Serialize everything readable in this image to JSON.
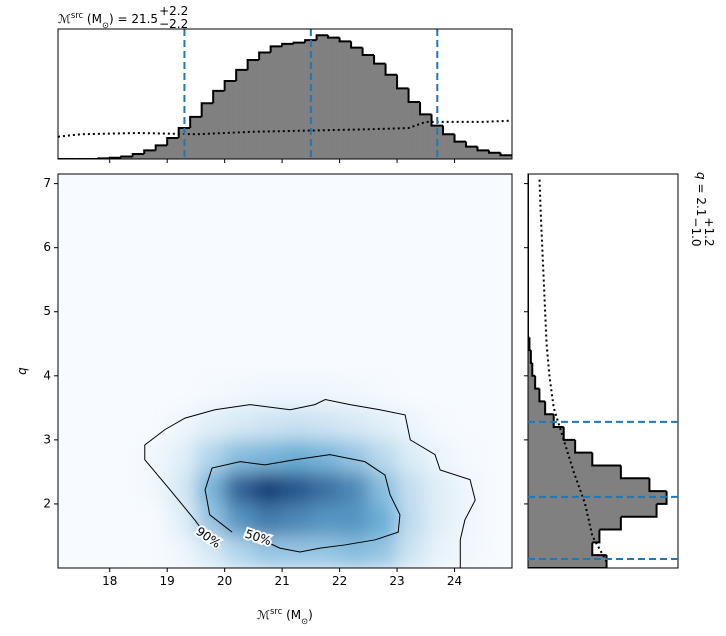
{
  "chart_data": {
    "type": "joint",
    "title": {
      "main": "ℳ",
      "sup": "src",
      "rest": " (M",
      "sub": "⊙",
      "close": ") = 21.5",
      "upper": "+2.2",
      "lower": "−2.2"
    },
    "right_title": {
      "main": "q",
      "rest": " = 2.1",
      "upper": "+1.2",
      "lower": "−1.0"
    },
    "xlabel": {
      "main": "ℳ",
      "sup": "src",
      "rest": " (M",
      "sub": "⊙",
      "close": ")"
    },
    "ylabel": "q",
    "xlim": [
      17.1,
      25.0
    ],
    "xticks": [
      18,
      19,
      20,
      21,
      22,
      23,
      24
    ],
    "ylim": [
      1.0,
      7.15
    ],
    "yticks": [
      2,
      3,
      4,
      5,
      6,
      7
    ],
    "cmap": [
      "#f7fbff",
      "#6baed6",
      "#08306b"
    ],
    "heatmap": {
      "x": [
        18.75,
        19.25,
        19.75,
        20.25,
        20.75,
        21.25,
        21.75,
        22.25,
        22.75,
        23.25,
        23.75,
        24.25
      ],
      "y": [
        1.25,
        1.75,
        2.25,
        2.75,
        3.25,
        3.75
      ],
      "values": [
        [
          0,
          0.03,
          0.12,
          0.25,
          0.35,
          0.35,
          0.35,
          0.4,
          0.35,
          0.15,
          0.05,
          0.02
        ],
        [
          0,
          0.08,
          0.35,
          0.6,
          0.7,
          0.65,
          0.6,
          0.6,
          0.5,
          0.2,
          0.08,
          0.03
        ],
        [
          0.02,
          0.12,
          0.45,
          0.8,
          0.95,
          0.85,
          0.75,
          0.65,
          0.4,
          0.18,
          0.08,
          0.03
        ],
        [
          0.02,
          0.08,
          0.25,
          0.4,
          0.45,
          0.5,
          0.45,
          0.35,
          0.22,
          0.1,
          0.04,
          0.01
        ],
        [
          0,
          0.03,
          0.08,
          0.12,
          0.15,
          0.17,
          0.15,
          0.12,
          0.08,
          0.04,
          0.01,
          0
        ],
        [
          0,
          0,
          0.01,
          0.02,
          0.03,
          0.03,
          0.03,
          0.02,
          0.01,
          0,
          0,
          0
        ]
      ]
    },
    "contours": [
      {
        "label": "90%",
        "x": [
          19.71,
          19.48,
          19.05,
          18.61,
          18.61,
          18.96,
          19.31,
          19.83,
          20.44,
          21.14,
          21.57,
          21.75,
          22.18,
          22.7,
          23.14,
          23.23,
          23.66,
          23.75,
          24.27,
          24.36,
          24.18,
          24.1,
          24.1
        ],
        "y": [
          1.47,
          1.75,
          2.22,
          2.69,
          2.92,
          3.16,
          3.34,
          3.47,
          3.55,
          3.47,
          3.55,
          3.63,
          3.55,
          3.47,
          3.39,
          3.0,
          2.77,
          2.53,
          2.38,
          2.06,
          1.75,
          1.44,
          1.0
        ]
      },
      {
        "label": "50%",
        "x": [
          20.58,
          20.96,
          21.31,
          21.66,
          22.09,
          22.62,
          23.02,
          23.05,
          22.88,
          22.79,
          22.44,
          21.83,
          21.22,
          20.7,
          20.27,
          19.78,
          19.66,
          19.74,
          20.13
        ],
        "y": [
          1.47,
          1.31,
          1.25,
          1.31,
          1.36,
          1.44,
          1.56,
          1.83,
          2.14,
          2.45,
          2.66,
          2.77,
          2.69,
          2.61,
          2.66,
          2.56,
          2.22,
          1.83,
          1.56
        ]
      }
    ],
    "top_hist": {
      "color": "#808080",
      "ylim": [
        0,
        1.05
      ],
      "bins": [
        17.0,
        17.2,
        17.4,
        17.6,
        17.8,
        18.0,
        18.2,
        18.4,
        18.6,
        18.8,
        19.0,
        19.2,
        19.4,
        19.6,
        19.8,
        20.0,
        20.2,
        20.4,
        20.6,
        20.8,
        21.0,
        21.2,
        21.4,
        21.6,
        21.8,
        22.0,
        22.2,
        22.4,
        22.6,
        22.8,
        23.0,
        23.2,
        23.4,
        23.6,
        23.8,
        24.0,
        24.2,
        24.4,
        24.6,
        24.8,
        25.0
      ],
      "counts": [
        0,
        0,
        0,
        0,
        0.005,
        0.01,
        0.02,
        0.04,
        0.07,
        0.11,
        0.17,
        0.25,
        0.34,
        0.45,
        0.55,
        0.63,
        0.72,
        0.8,
        0.86,
        0.91,
        0.93,
        0.94,
        0.96,
        1.0,
        0.98,
        0.95,
        0.9,
        0.84,
        0.77,
        0.68,
        0.57,
        0.46,
        0.36,
        0.27,
        0.2,
        0.14,
        0.1,
        0.07,
        0.05,
        0.03
      ],
      "prior": {
        "x": [
          17.1,
          17.5,
          18.5,
          19.5,
          20.5,
          21.5,
          22.5,
          23.2,
          23.5,
          24.5,
          25.0
        ],
        "y": [
          0.18,
          0.2,
          0.21,
          0.2,
          0.22,
          0.23,
          0.24,
          0.25,
          0.3,
          0.3,
          0.31
        ]
      },
      "quantiles": [
        19.3,
        21.5,
        23.7
      ],
      "quantile_color": "#1f77b4"
    },
    "right_hist": {
      "color": "#808080",
      "xlim": [
        0,
        1.05
      ],
      "bins": [
        1.0,
        1.2,
        1.4,
        1.6,
        1.8,
        2.0,
        2.2,
        2.4,
        2.6,
        2.8,
        3.0,
        3.2,
        3.4,
        3.6,
        3.8,
        4.0,
        4.2,
        4.4,
        4.6,
        4.8,
        5.0,
        5.2,
        5.4,
        5.6,
        5.8,
        6.0,
        6.2,
        6.4,
        6.6,
        6.8,
        7.0,
        7.2
      ],
      "counts": [
        0.55,
        0.45,
        0.5,
        0.65,
        0.9,
        0.97,
        0.85,
        0.65,
        0.45,
        0.33,
        0.25,
        0.18,
        0.12,
        0.08,
        0.05,
        0.03,
        0.02,
        0.01,
        0,
        0,
        0,
        0,
        0,
        0,
        0,
        0,
        0,
        0,
        0,
        0,
        0
      ],
      "prior": {
        "x": [
          0.55,
          0.45,
          0.4,
          0.32,
          0.25,
          0.18,
          0.15,
          0.13,
          0.12,
          0.11,
          0.1,
          0.09,
          0.08
        ],
        "y": [
          1.1,
          1.5,
          2.0,
          2.5,
          3.0,
          3.5,
          4.0,
          4.5,
          5.0,
          5.5,
          6.0,
          6.5,
          7.1
        ]
      },
      "quantiles": [
        1.14,
        2.11,
        3.28
      ],
      "quantile_color": "#1f77b4"
    }
  }
}
